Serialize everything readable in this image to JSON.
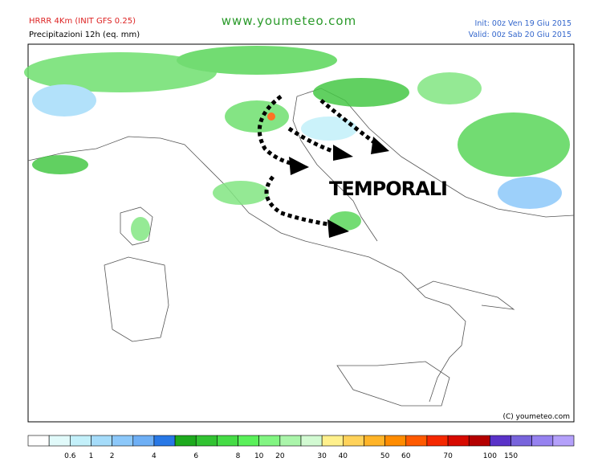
{
  "header": {
    "model": "HRRR 4Km (INIT GFS 0.25)",
    "product": "Precipitazioni 12h (eq. mm)",
    "site": "www.youmeteo.com",
    "init": "Init: 00z Ven  19 Giu 2015",
    "valid": "Valid: 00z Sab  20 Giu 2015"
  },
  "map": {
    "annotation": "TEMPORALI",
    "credit": "(C) youmeteo.com"
  },
  "legend": {
    "boxes": [
      {
        "color": "#ffffff"
      },
      {
        "color": "#e1fafa",
        "label": "0.6"
      },
      {
        "color": "#c3f0fa",
        "label": "1"
      },
      {
        "color": "#a5dcfa",
        "label": "2"
      },
      {
        "color": "#8cc8fa"
      },
      {
        "color": "#6eaff5",
        "label": "4"
      },
      {
        "color": "#2878e6"
      },
      {
        "color": "#1eaa1e",
        "label": "6"
      },
      {
        "color": "#32c332"
      },
      {
        "color": "#46dc46",
        "label": "8"
      },
      {
        "color": "#5af05a",
        "label": "10"
      },
      {
        "color": "#82f582",
        "label": "20"
      },
      {
        "color": "#aaf5aa"
      },
      {
        "color": "#d2fad2",
        "label": "30"
      },
      {
        "color": "#fff08c",
        "label": "40"
      },
      {
        "color": "#ffd25a"
      },
      {
        "color": "#ffb428",
        "label": "50"
      },
      {
        "color": "#ff8c00",
        "label": "60"
      },
      {
        "color": "#ff5a00"
      },
      {
        "color": "#f52800",
        "label": "70"
      },
      {
        "color": "#d70a00"
      },
      {
        "color": "#b40000",
        "label": "100"
      },
      {
        "color": "#5a32c8",
        "label": "150"
      },
      {
        "color": "#7864dc"
      },
      {
        "color": "#9682f0"
      },
      {
        "color": "#b4a0fa"
      }
    ]
  }
}
